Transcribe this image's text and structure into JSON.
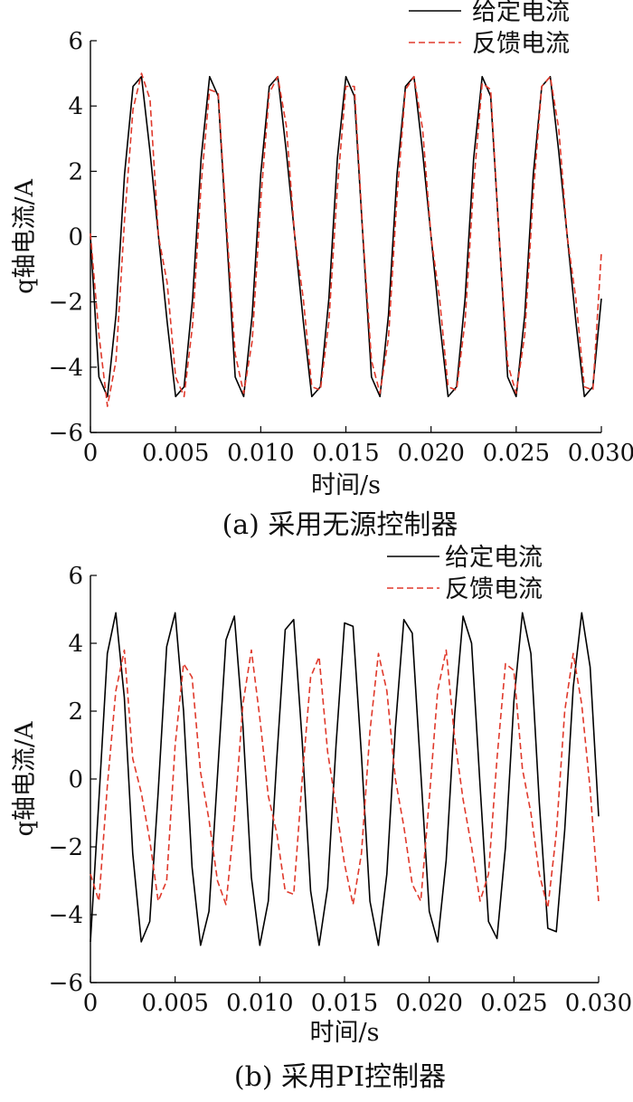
{
  "chart_data": [
    {
      "type": "line",
      "caption": "(a) 采用无源控制器",
      "xlabel": "时间/s",
      "ylabel": "q轴电流/A",
      "xlim": [
        0,
        0.03
      ],
      "ylim": [
        -6,
        6
      ],
      "xticks": [
        0,
        0.005,
        0.01,
        0.015,
        0.02,
        0.025,
        0.03
      ],
      "xtick_labels": [
        "0",
        "0.005",
        "0.010",
        "0.015",
        "0.020",
        "0.025",
        "0.030"
      ],
      "yticks": [
        -6,
        -4,
        -2,
        0,
        2,
        4,
        6
      ],
      "ytick_labels": [
        "−6",
        "−4",
        "−2",
        "0",
        "2",
        "4",
        "6"
      ],
      "legend_position": "top-right",
      "grid": false,
      "series": [
        {
          "name": "给定电流",
          "color": "#000000",
          "dash": "solid",
          "x": [
            0,
            0.0005,
            0.001,
            0.0015,
            0.002,
            0.0025,
            0.003,
            0.0035,
            0.004,
            0.0045,
            0.005,
            0.0055,
            0.006,
            0.0065,
            0.007,
            0.0075,
            0.008,
            0.0085,
            0.009,
            0.0095,
            0.01,
            0.0105,
            0.011,
            0.0115,
            0.012,
            0.0125,
            0.013,
            0.0135,
            0.014,
            0.0145,
            0.015,
            0.0155,
            0.016,
            0.0165,
            0.017,
            0.0175,
            0.018,
            0.0185,
            0.019,
            0.0195,
            0.02,
            0.0205,
            0.021,
            0.0215,
            0.022,
            0.0225,
            0.023,
            0.0235,
            0.024,
            0.0245,
            0.025,
            0.0255,
            0.026,
            0.0265,
            0.027,
            0.0275,
            0.028,
            0.0285,
            0.029,
            0.0295,
            0.03
          ],
          "y": [
            0,
            -4.3,
            -4.9,
            -2.4,
            1.9,
            4.6,
            4.9,
            2.6,
            0,
            -2.6,
            -4.9,
            -4.6,
            -1.9,
            2.4,
            4.9,
            4.3,
            0,
            -4.3,
            -4.9,
            -2.4,
            1.9,
            4.6,
            4.9,
            2.6,
            0,
            -2.6,
            -4.9,
            -4.6,
            -1.9,
            2.4,
            4.9,
            4.3,
            0,
            -4.3,
            -4.9,
            -2.4,
            1.9,
            4.6,
            4.9,
            2.6,
            0,
            -2.6,
            -4.9,
            -4.6,
            -1.9,
            2.4,
            4.9,
            4.3,
            0,
            -4.3,
            -4.9,
            -2.4,
            1.9,
            4.6,
            4.9,
            2.6,
            0,
            -2.6,
            -4.9,
            -4.6,
            -1.9
          ]
        },
        {
          "name": "反馈电流",
          "color": "#e0392b",
          "dash": "dashed",
          "x": [
            0,
            0.0005,
            0.001,
            0.0015,
            0.002,
            0.0025,
            0.003,
            0.0035,
            0.004,
            0.0045,
            0.005,
            0.0055,
            0.006,
            0.0065,
            0.007,
            0.0075,
            0.008,
            0.0085,
            0.009,
            0.0095,
            0.01,
            0.0105,
            0.011,
            0.0115,
            0.012,
            0.0125,
            0.013,
            0.0135,
            0.014,
            0.0145,
            0.015,
            0.0155,
            0.016,
            0.0165,
            0.017,
            0.0175,
            0.018,
            0.0185,
            0.019,
            0.0195,
            0.02,
            0.0205,
            0.021,
            0.0215,
            0.022,
            0.0225,
            0.023,
            0.0235,
            0.024,
            0.0245,
            0.025,
            0.0255,
            0.026,
            0.0265,
            0.027,
            0.0275,
            0.028,
            0.0285,
            0.029,
            0.0295,
            0.03
          ],
          "y": [
            0.1,
            -3.0,
            -5.2,
            -3.8,
            0.5,
            3.9,
            5.0,
            4.2,
            0,
            -1.4,
            -4.3,
            -4.9,
            -2.7,
            1.6,
            4.5,
            4.4,
            0.3,
            -3.6,
            -4.8,
            -3.2,
            1.1,
            4.4,
            4.9,
            3.4,
            0,
            -1.9,
            -4.6,
            -4.7,
            -2.6,
            1.5,
            4.6,
            4.6,
            0.1,
            -3.8,
            -4.8,
            -3.1,
            1.2,
            4.5,
            4.9,
            3.3,
            0,
            -1.9,
            -4.6,
            -4.7,
            -2.6,
            1.6,
            4.7,
            4.5,
            0,
            -3.9,
            -4.8,
            -3.0,
            1.3,
            4.6,
            4.9,
            3.3,
            0,
            -1.9,
            -4.6,
            -4.7,
            -0.5
          ]
        }
      ]
    },
    {
      "type": "line",
      "caption": "(b) 采用PI控制器",
      "xlabel": "时间/s",
      "ylabel": "q轴电流/A",
      "xlim": [
        0,
        0.03
      ],
      "ylim": [
        -6,
        6
      ],
      "xticks": [
        0,
        0.005,
        0.01,
        0.015,
        0.02,
        0.025,
        0.03
      ],
      "xtick_labels": [
        "0",
        "0.005",
        "0.010",
        "0.015",
        "0.020",
        "0.025",
        "0.030"
      ],
      "yticks": [
        -6,
        -4,
        -2,
        0,
        2,
        4,
        6
      ],
      "ytick_labels": [
        "−6",
        "−4",
        "−2",
        "0",
        "2",
        "4",
        "6"
      ],
      "legend_position": "top-right",
      "grid": false,
      "series": [
        {
          "name": "给定电流",
          "color": "#000000",
          "dash": "solid",
          "x": [
            0,
            0.0005,
            0.001,
            0.0015,
            0.002,
            0.0025,
            0.003,
            0.0035,
            0.004,
            0.0045,
            0.005,
            0.0055,
            0.006,
            0.0065,
            0.007,
            0.0075,
            0.008,
            0.0085,
            0.009,
            0.0095,
            0.01,
            0.0105,
            0.011,
            0.0115,
            0.012,
            0.0125,
            0.013,
            0.0135,
            0.014,
            0.0145,
            0.015,
            0.0155,
            0.016,
            0.0165,
            0.017,
            0.0175,
            0.018,
            0.0185,
            0.019,
            0.0195,
            0.02,
            0.0205,
            0.021,
            0.0215,
            0.022,
            0.0225,
            0.023,
            0.0235,
            0.024,
            0.0245,
            0.025,
            0.0255,
            0.026,
            0.0265,
            0.027,
            0.0275,
            0.028,
            0.0285,
            0.029,
            0.0295,
            0.03
          ],
          "y": [
            -4.8,
            -0.6,
            3.7,
            4.9,
            2.4,
            -2.2,
            -4.8,
            -4.2,
            -0.4,
            3.9,
            4.9,
            2.0,
            -2.6,
            -4.9,
            -3.9,
            0.1,
            4.1,
            4.8,
            1.6,
            -2.9,
            -4.9,
            -3.6,
            0.6,
            4.4,
            4.7,
            1.1,
            -3.3,
            -4.9,
            -3.2,
            1.0,
            4.6,
            4.5,
            0.7,
            -3.6,
            -4.9,
            -2.8,
            1.5,
            4.7,
            4.3,
            0.2,
            -3.9,
            -4.8,
            -2.4,
            1.9,
            4.8,
            4.0,
            -0.2,
            -4.2,
            -4.7,
            -2.0,
            2.3,
            4.9,
            3.7,
            -0.7,
            -4.4,
            -4.5,
            -1.5,
            2.7,
            4.9,
            3.3,
            -1.1
          ]
        },
        {
          "name": "反馈电流",
          "color": "#e0392b",
          "dash": "dashed",
          "x": [
            0,
            0.0005,
            0.001,
            0.0015,
            0.002,
            0.0025,
            0.003,
            0.0035,
            0.004,
            0.0045,
            0.005,
            0.0055,
            0.006,
            0.0065,
            0.007,
            0.0075,
            0.008,
            0.0085,
            0.009,
            0.0095,
            0.01,
            0.0105,
            0.011,
            0.0115,
            0.012,
            0.0125,
            0.013,
            0.0135,
            0.014,
            0.0145,
            0.015,
            0.0155,
            0.016,
            0.0165,
            0.017,
            0.0175,
            0.018,
            0.0185,
            0.019,
            0.0195,
            0.02,
            0.0205,
            0.021,
            0.0215,
            0.022,
            0.0225,
            0.023,
            0.0235,
            0.024,
            0.0245,
            0.025,
            0.0255,
            0.026,
            0.0265,
            0.027,
            0.0275,
            0.028,
            0.0285,
            0.029,
            0.0295,
            0.03
          ],
          "y": [
            -2.8,
            -3.6,
            -0.2,
            2.6,
            3.8,
            0.6,
            -0.4,
            -1.8,
            -3.6,
            -3.0,
            1.0,
            3.4,
            3.0,
            0.2,
            -1.2,
            -3.0,
            -3.7,
            -1.2,
            2.2,
            3.8,
            1.8,
            -0.5,
            -1.6,
            -3.3,
            -3.4,
            0.0,
            3.0,
            3.6,
            0.8,
            -0.8,
            -2.5,
            -3.7,
            -2.2,
            1.4,
            3.7,
            2.6,
            0.0,
            -1.4,
            -3.1,
            -3.6,
            -0.6,
            2.6,
            3.8,
            1.2,
            -0.6,
            -2.0,
            -3.6,
            -2.8,
            0.6,
            3.4,
            3.2,
            0.3,
            -1.0,
            -2.8,
            -3.8,
            -1.6,
            2.0,
            3.7,
            2.2,
            -0.3,
            -3.6
          ]
        }
      ]
    }
  ]
}
